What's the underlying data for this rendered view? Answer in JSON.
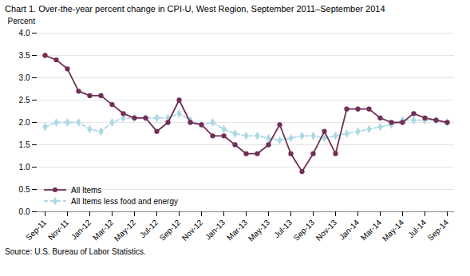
{
  "chart_data": {
    "type": "line",
    "title": "Chart 1. Over-the-year percent change in CPI-U,  West Region,  September 2011–September 2014",
    "y_label": "Percent",
    "caption": "Source: U.S. Bureau of Labor Statistics.",
    "categories": [
      "Sep-11",
      null,
      "Nov-11",
      null,
      "Jan-12",
      null,
      "Mar-12",
      null,
      "May-12",
      null,
      "Jul-12",
      null,
      "Sep-12",
      null,
      "Nov-12",
      null,
      "Jan-13",
      null,
      "Mar-13",
      null,
      "May-13",
      null,
      "Jul-13",
      null,
      "Sep-13",
      null,
      "Nov-13",
      null,
      "Jan-14",
      null,
      "Mar-14",
      null,
      "May-14",
      null,
      "Jul-14",
      null,
      "Sep-14"
    ],
    "series": [
      {
        "name": "All Items",
        "color": "#722F57",
        "marker": "circle",
        "line_style": "solid",
        "values": [
          3.5,
          3.4,
          3.2,
          2.7,
          2.6,
          2.6,
          2.4,
          2.2,
          2.1,
          2.1,
          1.8,
          2.0,
          2.5,
          2.0,
          1.95,
          1.7,
          1.7,
          1.5,
          1.3,
          1.3,
          1.5,
          1.95,
          1.3,
          0.9,
          1.3,
          1.8,
          1.3,
          2.3,
          2.3,
          2.3,
          2.1,
          2.0,
          2.0,
          2.2,
          2.1,
          2.05,
          2.0
        ]
      },
      {
        "name": "All Items less food and energy",
        "color": "#ADD8E6",
        "marker": "diamond",
        "line_style": "dashed",
        "values": [
          1.9,
          2.0,
          2.0,
          2.0,
          1.85,
          1.8,
          2.0,
          2.1,
          2.1,
          2.1,
          2.1,
          2.1,
          2.2,
          2.05,
          1.95,
          2.0,
          1.85,
          1.75,
          1.7,
          1.7,
          1.65,
          1.6,
          1.65,
          1.7,
          1.7,
          1.65,
          1.7,
          1.75,
          1.8,
          1.85,
          1.9,
          1.95,
          2.05,
          2.05,
          2.05,
          2.05,
          2.0
        ]
      }
    ],
    "ylim": [
      0.0,
      4.0
    ],
    "yticks": [
      {
        "value": 0,
        "label": "0.0"
      },
      0.5,
      {
        "value": 1,
        "label": "1.0"
      },
      1.5,
      {
        "value": 2,
        "label": "2.0"
      },
      2.5,
      {
        "value": 3,
        "label": "3.0"
      },
      3.5,
      {
        "value": 4,
        "label": "4.0"
      }
    ],
    "grid": true,
    "legend": "lower left"
  }
}
